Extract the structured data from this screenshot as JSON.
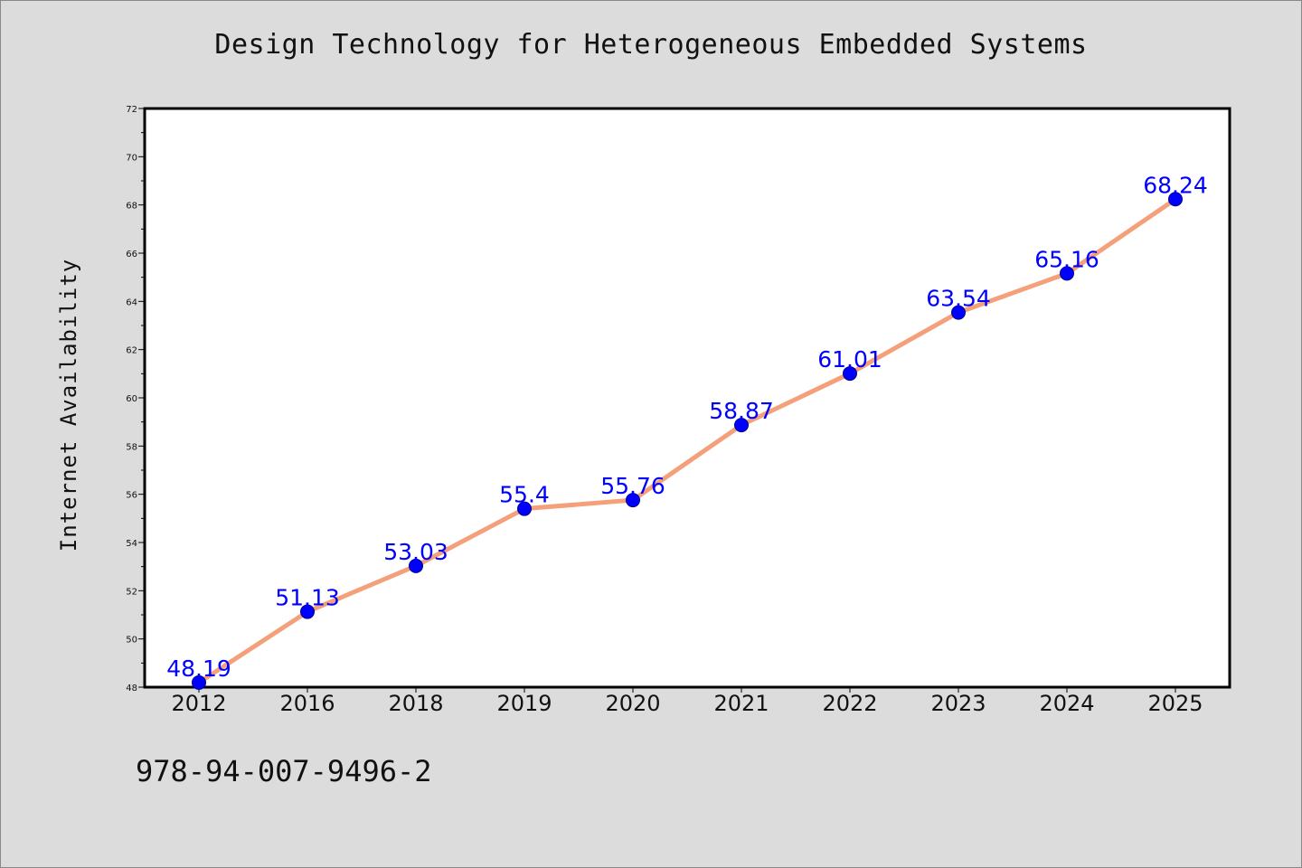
{
  "title": "Design Technology for Heterogeneous Embedded Systems",
  "footer": "978-94-007-9496-2",
  "colors": {
    "background": "#dcdcdc",
    "plot_background": "#ffffff",
    "line": "#f4a07a",
    "marker": "#0000ff",
    "data_label": "#0000ff"
  },
  "chart_data": {
    "type": "line",
    "title": "Design Technology for Heterogeneous Embedded Systems",
    "xlabel": "",
    "ylabel": "Internet Availability",
    "categories": [
      "2012",
      "2016",
      "2018",
      "2019",
      "2020",
      "2021",
      "2022",
      "2023",
      "2024",
      "2025"
    ],
    "series": [
      {
        "values": [
          48.19,
          51.13,
          53.03,
          55.4,
          55.76,
          58.87,
          61.01,
          63.54,
          65.16,
          68.24
        ],
        "labels": [
          "48.19",
          "51.13",
          "53.03",
          "55.4",
          "55.76",
          "58.87",
          "61.01",
          "63.54",
          "65.16",
          "68.24"
        ]
      }
    ],
    "ylim": [
      48,
      72
    ],
    "yticks": [
      48,
      50,
      52,
      54,
      56,
      58,
      60,
      62,
      64,
      66,
      68,
      70,
      72
    ],
    "grid": false,
    "legend": "none"
  }
}
